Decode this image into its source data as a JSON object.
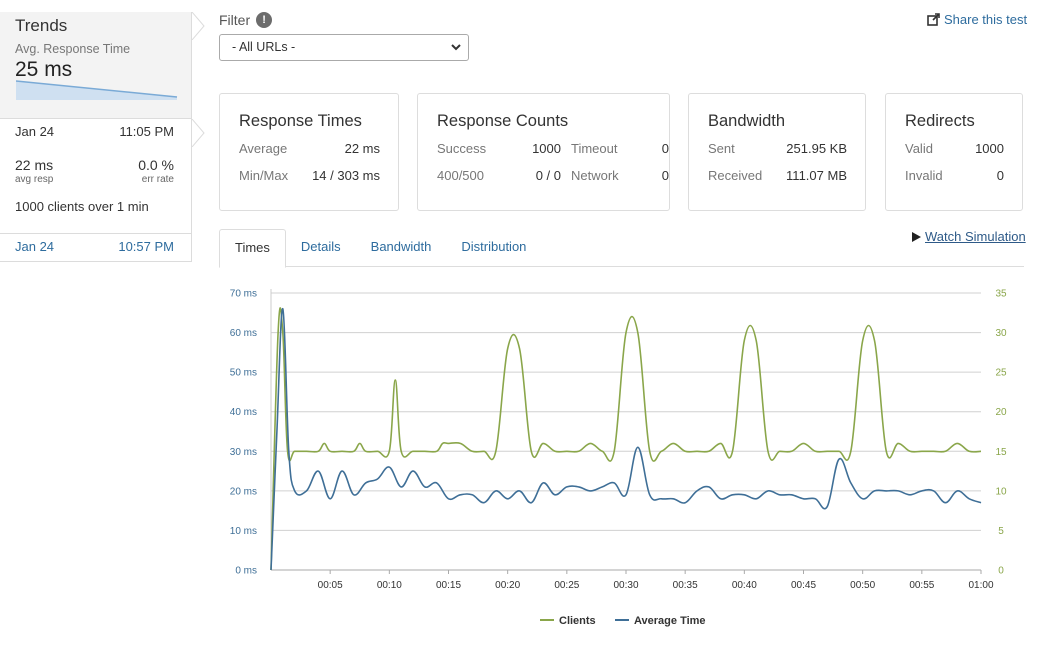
{
  "trends": {
    "title": "Trends",
    "subtitle": "Avg. Response Time",
    "value": "25 ms"
  },
  "runs": [
    {
      "date": "Jan 24",
      "time": "11:05 PM",
      "avg_resp": "22 ms",
      "avg_resp_label": "avg resp",
      "err_rate": "0.0 %",
      "err_rate_label": "err rate",
      "clients_text": "1000 clients over 1 min"
    },
    {
      "date": "Jan 24",
      "time": "10:57 PM"
    }
  ],
  "filter": {
    "label": "Filter",
    "info_icon": "!",
    "selected": "- All URLs -"
  },
  "share": {
    "label": "Share this test",
    "icon": "share-icon"
  },
  "cards": {
    "response_times": {
      "title": "Response Times",
      "average_label": "Average",
      "average": "22 ms",
      "minmax_label": "Min/Max",
      "minmax": "14 / 303 ms"
    },
    "response_counts": {
      "title": "Response Counts",
      "success_label": "Success",
      "success": "1000",
      "timeout_label": "Timeout",
      "timeout": "0",
      "r400_label": "400/500",
      "r400": "0 / 0",
      "network_label": "Network",
      "network": "0"
    },
    "bandwidth": {
      "title": "Bandwidth",
      "sent_label": "Sent",
      "sent": "251.95 KB",
      "received_label": "Received",
      "received": "111.07 MB"
    },
    "redirects": {
      "title": "Redirects",
      "valid_label": "Valid",
      "valid": "1000",
      "invalid_label": "Invalid",
      "invalid": "0"
    }
  },
  "tabs": [
    "Times",
    "Details",
    "Bandwidth",
    "Distribution"
  ],
  "active_tab": "Times",
  "watch_simulation": "Watch Simulation",
  "colors": {
    "clients": "#8aa64a",
    "average_time": "#3f6f97",
    "link": "#2e6c9e",
    "grid": "#d0d0d0"
  },
  "chart_data": {
    "type": "line",
    "x_ticks": [
      "00:05",
      "00:10",
      "00:15",
      "00:20",
      "00:25",
      "00:30",
      "00:35",
      "00:40",
      "00:45",
      "00:50",
      "00:55",
      "01:00"
    ],
    "y_left_ticks": [
      "0 ms",
      "10 ms",
      "20 ms",
      "30 ms",
      "40 ms",
      "50 ms",
      "60 ms",
      "70 ms"
    ],
    "y_right_ticks": [
      "0",
      "5",
      "10",
      "15",
      "20",
      "25",
      "30",
      "35"
    ],
    "ylim_left": [
      0,
      70
    ],
    "ylim_right": [
      0,
      35
    ],
    "xlim_seconds": [
      0,
      60
    ],
    "grid": true,
    "legend_position": "bottom",
    "series": [
      {
        "name": "Clients",
        "axis": "right",
        "points": [
          [
            0,
            0
          ],
          [
            0.6,
            30
          ],
          [
            1,
            30
          ],
          [
            1.4,
            15
          ],
          [
            2,
            15
          ],
          [
            3,
            15
          ],
          [
            4,
            15
          ],
          [
            4.5,
            16
          ],
          [
            5,
            15
          ],
          [
            6,
            15
          ],
          [
            7,
            15
          ],
          [
            7.5,
            16
          ],
          [
            8,
            15
          ],
          [
            9,
            15
          ],
          [
            10,
            15
          ],
          [
            10.5,
            24
          ],
          [
            11,
            15
          ],
          [
            12,
            15
          ],
          [
            13,
            15
          ],
          [
            14,
            15
          ],
          [
            14.5,
            16
          ],
          [
            15,
            16
          ],
          [
            16,
            16
          ],
          [
            17,
            15
          ],
          [
            18,
            15
          ],
          [
            19,
            15
          ],
          [
            20,
            28
          ],
          [
            21,
            28
          ],
          [
            22,
            15
          ],
          [
            23,
            16
          ],
          [
            24,
            15
          ],
          [
            25,
            15
          ],
          [
            26,
            15
          ],
          [
            27,
            16
          ],
          [
            28,
            15
          ],
          [
            29,
            15
          ],
          [
            30,
            30
          ],
          [
            31,
            30
          ],
          [
            32,
            15
          ],
          [
            33,
            15
          ],
          [
            34,
            16
          ],
          [
            35,
            15
          ],
          [
            36,
            15
          ],
          [
            37,
            15
          ],
          [
            38,
            16
          ],
          [
            39,
            15
          ],
          [
            40,
            29
          ],
          [
            41,
            29
          ],
          [
            42,
            15
          ],
          [
            43,
            15
          ],
          [
            44,
            15
          ],
          [
            45,
            16
          ],
          [
            46,
            15
          ],
          [
            47,
            15
          ],
          [
            48,
            15
          ],
          [
            49,
            15
          ],
          [
            50,
            29
          ],
          [
            51,
            29
          ],
          [
            52,
            15
          ],
          [
            53,
            16
          ],
          [
            54,
            15
          ],
          [
            55,
            15
          ],
          [
            56,
            15
          ],
          [
            57,
            15
          ],
          [
            58,
            16
          ],
          [
            59,
            15
          ],
          [
            60,
            15
          ]
        ]
      },
      {
        "name": "Average Time",
        "axis": "left",
        "points": [
          [
            0,
            0
          ],
          [
            0.5,
            35
          ],
          [
            1,
            66
          ],
          [
            1.5,
            30
          ],
          [
            2,
            20
          ],
          [
            3,
            20
          ],
          [
            4,
            25
          ],
          [
            5,
            18
          ],
          [
            6,
            25
          ],
          [
            7,
            19
          ],
          [
            8,
            22
          ],
          [
            9,
            23
          ],
          [
            10,
            26
          ],
          [
            11,
            21
          ],
          [
            12,
            25
          ],
          [
            13,
            21
          ],
          [
            14,
            22
          ],
          [
            15,
            18
          ],
          [
            16,
            19
          ],
          [
            17,
            19
          ],
          [
            18,
            17
          ],
          [
            19,
            20
          ],
          [
            20,
            18
          ],
          [
            21,
            20
          ],
          [
            22,
            17
          ],
          [
            23,
            22
          ],
          [
            24,
            19
          ],
          [
            25,
            21
          ],
          [
            26,
            21
          ],
          [
            27,
            20
          ],
          [
            28,
            21
          ],
          [
            29,
            22
          ],
          [
            30,
            19
          ],
          [
            31,
            31
          ],
          [
            32,
            19
          ],
          [
            33,
            18
          ],
          [
            34,
            18
          ],
          [
            35,
            17
          ],
          [
            36,
            20
          ],
          [
            37,
            21
          ],
          [
            38,
            18
          ],
          [
            39,
            19
          ],
          [
            40,
            19
          ],
          [
            41,
            18
          ],
          [
            42,
            20
          ],
          [
            43,
            19
          ],
          [
            44,
            19
          ],
          [
            45,
            18
          ],
          [
            46,
            18
          ],
          [
            47,
            16
          ],
          [
            48,
            28
          ],
          [
            49,
            22
          ],
          [
            50,
            18
          ],
          [
            51,
            20
          ],
          [
            52,
            20
          ],
          [
            53,
            20
          ],
          [
            54,
            19
          ],
          [
            55,
            20
          ],
          [
            56,
            20
          ],
          [
            57,
            17
          ],
          [
            58,
            20
          ],
          [
            59,
            18
          ],
          [
            60,
            17
          ]
        ]
      }
    ]
  }
}
